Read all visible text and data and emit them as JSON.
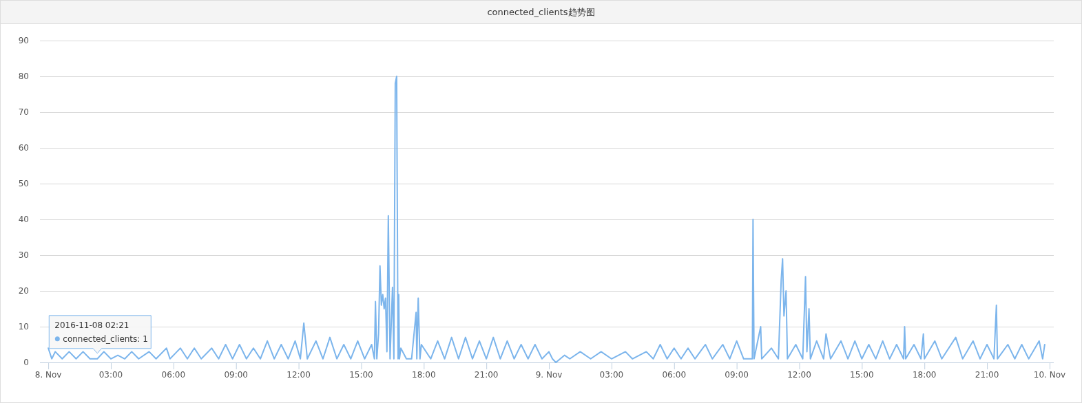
{
  "chart_data": {
    "type": "line",
    "title": "connected_clients趋势图",
    "xlim": [
      "2016-11-07T23:36",
      "2016-11-10T00:12"
    ],
    "xticks": [
      {
        "value": "2016-11-08T00:00",
        "label": "8. Nov"
      },
      {
        "value": "2016-11-08T03:00",
        "label": "03:00"
      },
      {
        "value": "2016-11-08T06:00",
        "label": "06:00"
      },
      {
        "value": "2016-11-08T09:00",
        "label": "09:00"
      },
      {
        "value": "2016-11-08T12:00",
        "label": "12:00"
      },
      {
        "value": "2016-11-08T15:00",
        "label": "15:00"
      },
      {
        "value": "2016-11-08T18:00",
        "label": "18:00"
      },
      {
        "value": "2016-11-08T21:00",
        "label": "21:00"
      },
      {
        "value": "2016-11-09T00:00",
        "label": "9. Nov"
      },
      {
        "value": "2016-11-09T03:00",
        "label": "03:00"
      },
      {
        "value": "2016-11-09T06:00",
        "label": "06:00"
      },
      {
        "value": "2016-11-09T09:00",
        "label": "09:00"
      },
      {
        "value": "2016-11-09T12:00",
        "label": "12:00"
      },
      {
        "value": "2016-11-09T15:00",
        "label": "15:00"
      },
      {
        "value": "2016-11-09T18:00",
        "label": "18:00"
      },
      {
        "value": "2016-11-09T21:00",
        "label": "21:00"
      },
      {
        "value": "2016-11-10T00:00",
        "label": "10. Nov"
      }
    ],
    "ylim": [
      0,
      90
    ],
    "yticks": [
      0,
      10,
      20,
      30,
      40,
      50,
      60,
      70,
      80,
      90
    ],
    "grid": "y",
    "marker": "none",
    "line_style": "solid",
    "annotations": [
      {
        "text": "2016-11-08 02:21\nconnected_clients: 1",
        "x": "2016-11-08T02:21",
        "y": 1
      }
    ],
    "series": [
      {
        "color": "#7cb5ec",
        "x": [
          "2016-11-08T00:00",
          "2016-11-08T00:10",
          "2016-11-08T00:20",
          "2016-11-08T00:40",
          "2016-11-08T01:00",
          "2016-11-08T01:20",
          "2016-11-08T01:40",
          "2016-11-08T02:00",
          "2016-11-08T02:21",
          "2016-11-08T02:40",
          "2016-11-08T03:00",
          "2016-11-08T03:20",
          "2016-11-08T03:40",
          "2016-11-08T04:00",
          "2016-11-08T04:20",
          "2016-11-08T04:50",
          "2016-11-08T05:10",
          "2016-11-08T05:40",
          "2016-11-08T05:50",
          "2016-11-08T06:20",
          "2016-11-08T06:40",
          "2016-11-08T07:00",
          "2016-11-08T07:20",
          "2016-11-08T07:50",
          "2016-11-08T08:10",
          "2016-11-08T08:30",
          "2016-11-08T08:50",
          "2016-11-08T09:10",
          "2016-11-08T09:30",
          "2016-11-08T09:50",
          "2016-11-08T10:10",
          "2016-11-08T10:30",
          "2016-11-08T10:50",
          "2016-11-08T11:10",
          "2016-11-08T11:30",
          "2016-11-08T11:50",
          "2016-11-08T12:05",
          "2016-11-08T12:15",
          "2016-11-08T12:25",
          "2016-11-08T12:50",
          "2016-11-08T13:10",
          "2016-11-08T13:30",
          "2016-11-08T13:50",
          "2016-11-08T14:10",
          "2016-11-08T14:30",
          "2016-11-08T14:50",
          "2016-11-08T15:10",
          "2016-11-08T15:30",
          "2016-11-08T15:38",
          "2016-11-08T15:41",
          "2016-11-08T15:45",
          "2016-11-08T15:50",
          "2016-11-08T15:54",
          "2016-11-08T15:58",
          "2016-11-08T16:02",
          "2016-11-08T16:06",
          "2016-11-08T16:10",
          "2016-11-08T16:14",
          "2016-11-08T16:18",
          "2016-11-08T16:23",
          "2016-11-08T16:30",
          "2016-11-08T16:34",
          "2016-11-08T16:38",
          "2016-11-08T16:42",
          "2016-11-08T16:46",
          "2016-11-08T16:48",
          "2016-11-08T16:50",
          "2016-11-08T16:54",
          "2016-11-08T17:10",
          "2016-11-08T17:25",
          "2016-11-08T17:38",
          "2016-11-08T17:40",
          "2016-11-08T17:44",
          "2016-11-08T17:49",
          "2016-11-08T17:53",
          "2016-11-08T18:20",
          "2016-11-08T18:40",
          "2016-11-08T19:00",
          "2016-11-08T19:20",
          "2016-11-08T19:40",
          "2016-11-08T20:00",
          "2016-11-08T20:20",
          "2016-11-08T20:40",
          "2016-11-08T21:00",
          "2016-11-08T21:20",
          "2016-11-08T21:40",
          "2016-11-08T22:00",
          "2016-11-08T22:20",
          "2016-11-08T22:40",
          "2016-11-08T23:00",
          "2016-11-08T23:20",
          "2016-11-08T23:40",
          "2016-11-09T00:00",
          "2016-11-09T00:10",
          "2016-11-09T00:20",
          "2016-11-09T00:45",
          "2016-11-09T01:00",
          "2016-11-09T01:30",
          "2016-11-09T02:00",
          "2016-11-09T02:30",
          "2016-11-09T03:00",
          "2016-11-09T03:40",
          "2016-11-09T04:00",
          "2016-11-09T04:40",
          "2016-11-09T05:00",
          "2016-11-09T05:20",
          "2016-11-09T05:40",
          "2016-11-09T06:00",
          "2016-11-09T06:20",
          "2016-11-09T06:40",
          "2016-11-09T07:00",
          "2016-11-09T07:30",
          "2016-11-09T07:50",
          "2016-11-09T08:20",
          "2016-11-09T08:40",
          "2016-11-09T09:00",
          "2016-11-09T09:20",
          "2016-11-09T09:45",
          "2016-11-09T09:47",
          "2016-11-09T09:50",
          "2016-11-09T10:09",
          "2016-11-09T10:12",
          "2016-11-09T10:40",
          "2016-11-09T11:00",
          "2016-11-09T11:08",
          "2016-11-09T11:12",
          "2016-11-09T11:16",
          "2016-11-09T11:22",
          "2016-11-09T11:26",
          "2016-11-09T11:50",
          "2016-11-09T12:10",
          "2016-11-09T12:18",
          "2016-11-09T12:22",
          "2016-11-09T12:28",
          "2016-11-09T12:32",
          "2016-11-09T12:50",
          "2016-11-09T13:10",
          "2016-11-09T13:17",
          "2016-11-09T13:30",
          "2016-11-09T14:00",
          "2016-11-09T14:20",
          "2016-11-09T14:40",
          "2016-11-09T15:00",
          "2016-11-09T15:20",
          "2016-11-09T15:40",
          "2016-11-09T16:00",
          "2016-11-09T16:20",
          "2016-11-09T16:40",
          "2016-11-09T17:00",
          "2016-11-09T17:03",
          "2016-11-09T17:06",
          "2016-11-09T17:30",
          "2016-11-09T17:50",
          "2016-11-09T17:57",
          "2016-11-09T18:00",
          "2016-11-09T18:30",
          "2016-11-09T18:50",
          "2016-11-09T19:30",
          "2016-11-09T19:50",
          "2016-11-09T20:20",
          "2016-11-09T20:40",
          "2016-11-09T21:00",
          "2016-11-09T21:20",
          "2016-11-09T21:27",
          "2016-11-09T21:30",
          "2016-11-09T22:00",
          "2016-11-09T22:20",
          "2016-11-09T22:40",
          "2016-11-09T23:00",
          "2016-11-09T23:30",
          "2016-11-09T23:40",
          "2016-11-09T23:46"
        ],
        "values": [
          4,
          1,
          3,
          1,
          3,
          1,
          3,
          1,
          1,
          3,
          1,
          2,
          1,
          3,
          1,
          3,
          1,
          4,
          1,
          4,
          1,
          4,
          1,
          4,
          1,
          5,
          1,
          5,
          1,
          4,
          1,
          6,
          1,
          5,
          1,
          6,
          1,
          11,
          1,
          6,
          1,
          7,
          1,
          5,
          1,
          6,
          1,
          5,
          1,
          17,
          1,
          8,
          27,
          16,
          19,
          15,
          18,
          3,
          41,
          1,
          21,
          1,
          78,
          80,
          1,
          19,
          1,
          4,
          1,
          1,
          14,
          1,
          18,
          1,
          5,
          1,
          6,
          1,
          7,
          1,
          7,
          1,
          6,
          1,
          7,
          1,
          6,
          1,
          5,
          1,
          5,
          1,
          3,
          1,
          0,
          2,
          1,
          3,
          1,
          3,
          1,
          3,
          1,
          3,
          1,
          5,
          1,
          4,
          1,
          4,
          1,
          5,
          1,
          5,
          1,
          6,
          1,
          1,
          40,
          1,
          10,
          1,
          4,
          1,
          23,
          29,
          13,
          20,
          1,
          5,
          1,
          24,
          3,
          15,
          1,
          6,
          1,
          8,
          1,
          6,
          1,
          6,
          1,
          5,
          1,
          6,
          1,
          5,
          1,
          10,
          1,
          5,
          1,
          8,
          1,
          6,
          1,
          7,
          1,
          6,
          1,
          5,
          1,
          16,
          1,
          5,
          1,
          5,
          1,
          6,
          1,
          5
        ]
      }
    ]
  }
}
